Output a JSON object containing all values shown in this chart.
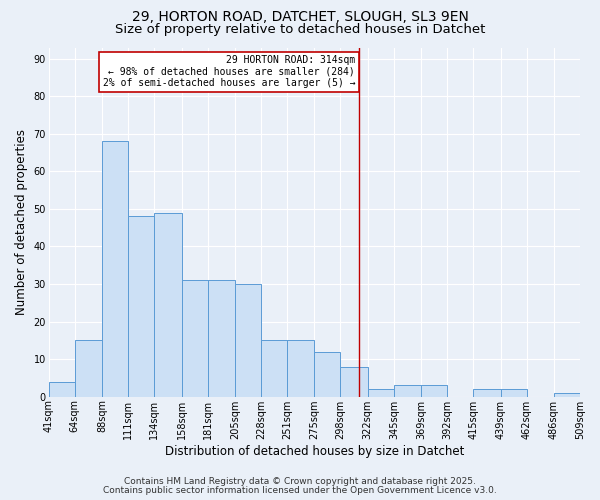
{
  "title1": "29, HORTON ROAD, DATCHET, SLOUGH, SL3 9EN",
  "title2": "Size of property relative to detached houses in Datchet",
  "xlabel": "Distribution of detached houses by size in Datchet",
  "ylabel": "Number of detached properties",
  "bin_edges": [
    41,
    64,
    88,
    111,
    134,
    158,
    181,
    205,
    228,
    251,
    275,
    298,
    322,
    345,
    369,
    392,
    415,
    439,
    462,
    486,
    509
  ],
  "bar_heights": [
    4,
    15,
    68,
    48,
    49,
    31,
    31,
    30,
    15,
    15,
    12,
    8,
    2,
    3,
    3,
    0,
    2,
    2,
    0,
    1
  ],
  "bar_color": "#cce0f5",
  "bar_edge_color": "#5b9bd5",
  "vline_x": 314,
  "vline_color": "#c00000",
  "annotation_text": "29 HORTON ROAD: 314sqm\n← 98% of detached houses are smaller (284)\n2% of semi-detached houses are larger (5) →",
  "annotation_box_color": "#ffffff",
  "annotation_box_edge_color": "#c00000",
  "ylim": [
    0,
    93
  ],
  "yticks": [
    0,
    10,
    20,
    30,
    40,
    50,
    60,
    70,
    80,
    90
  ],
  "bg_color": "#eaf0f8",
  "grid_color": "#ffffff",
  "footnote1": "Contains HM Land Registry data © Crown copyright and database right 2025.",
  "footnote2": "Contains public sector information licensed under the Open Government Licence v3.0.",
  "title_fontsize": 10,
  "tick_fontsize": 7,
  "label_fontsize": 8.5,
  "footnote_fontsize": 6.5
}
